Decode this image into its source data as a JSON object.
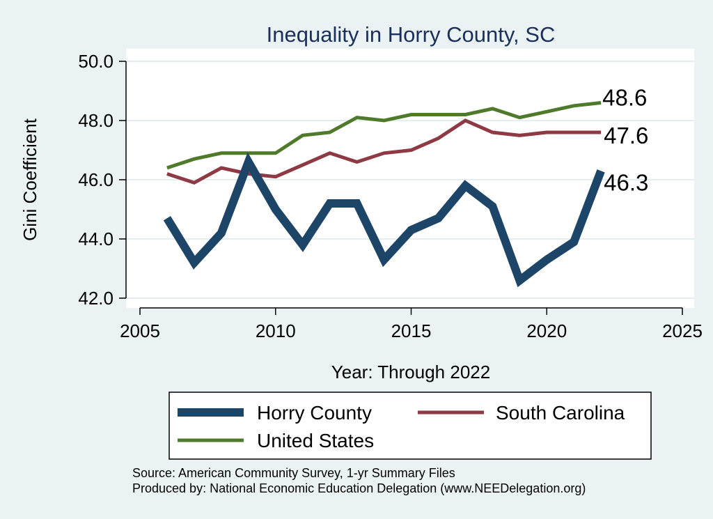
{
  "chart_data": {
    "type": "line",
    "title": "Inequality in Horry County, SC",
    "xlabel": "Year: Through 2022",
    "ylabel": "Gini Coefficient",
    "xlim": [
      2005,
      2025
    ],
    "ylim": [
      42.0,
      50.0
    ],
    "x_ticks": [
      "2005",
      "2010",
      "2015",
      "2020",
      "2025"
    ],
    "y_ticks": [
      "42.0",
      "44.0",
      "46.0",
      "48.0",
      "50.0"
    ],
    "grid": "horizontal",
    "legend_position": "bottom",
    "x": [
      2006,
      2007,
      2008,
      2009,
      2010,
      2011,
      2012,
      2013,
      2014,
      2015,
      2016,
      2017,
      2018,
      2019,
      2020,
      2021,
      2022
    ],
    "series": [
      {
        "name": "Horry County",
        "color": "#1d4567",
        "values": [
          44.7,
          43.2,
          44.2,
          46.6,
          45.0,
          43.8,
          45.2,
          45.2,
          43.3,
          44.3,
          44.7,
          45.8,
          45.1,
          42.6,
          43.3,
          43.9,
          46.3
        ],
        "end_label": "46.3"
      },
      {
        "name": "South Carolina",
        "color": "#8e3a44",
        "values": [
          46.2,
          45.9,
          46.4,
          46.2,
          46.1,
          46.5,
          46.9,
          46.6,
          46.9,
          47.0,
          47.4,
          48.0,
          47.6,
          47.5,
          47.6,
          47.6,
          47.6
        ],
        "end_label": "47.6"
      },
      {
        "name": "United States",
        "color": "#4f7a2c",
        "values": [
          46.4,
          46.7,
          46.9,
          46.9,
          46.9,
          47.5,
          47.6,
          48.1,
          48.0,
          48.2,
          48.2,
          48.2,
          48.4,
          48.1,
          48.3,
          48.5,
          48.6
        ],
        "end_label": "48.6"
      }
    ]
  },
  "source_note": {
    "line1": "Source: American Community Survey, 1-yr Summary Files",
    "line2": "Produced by: National Economic Education Delegation (www.NEEDelegation.org)"
  }
}
